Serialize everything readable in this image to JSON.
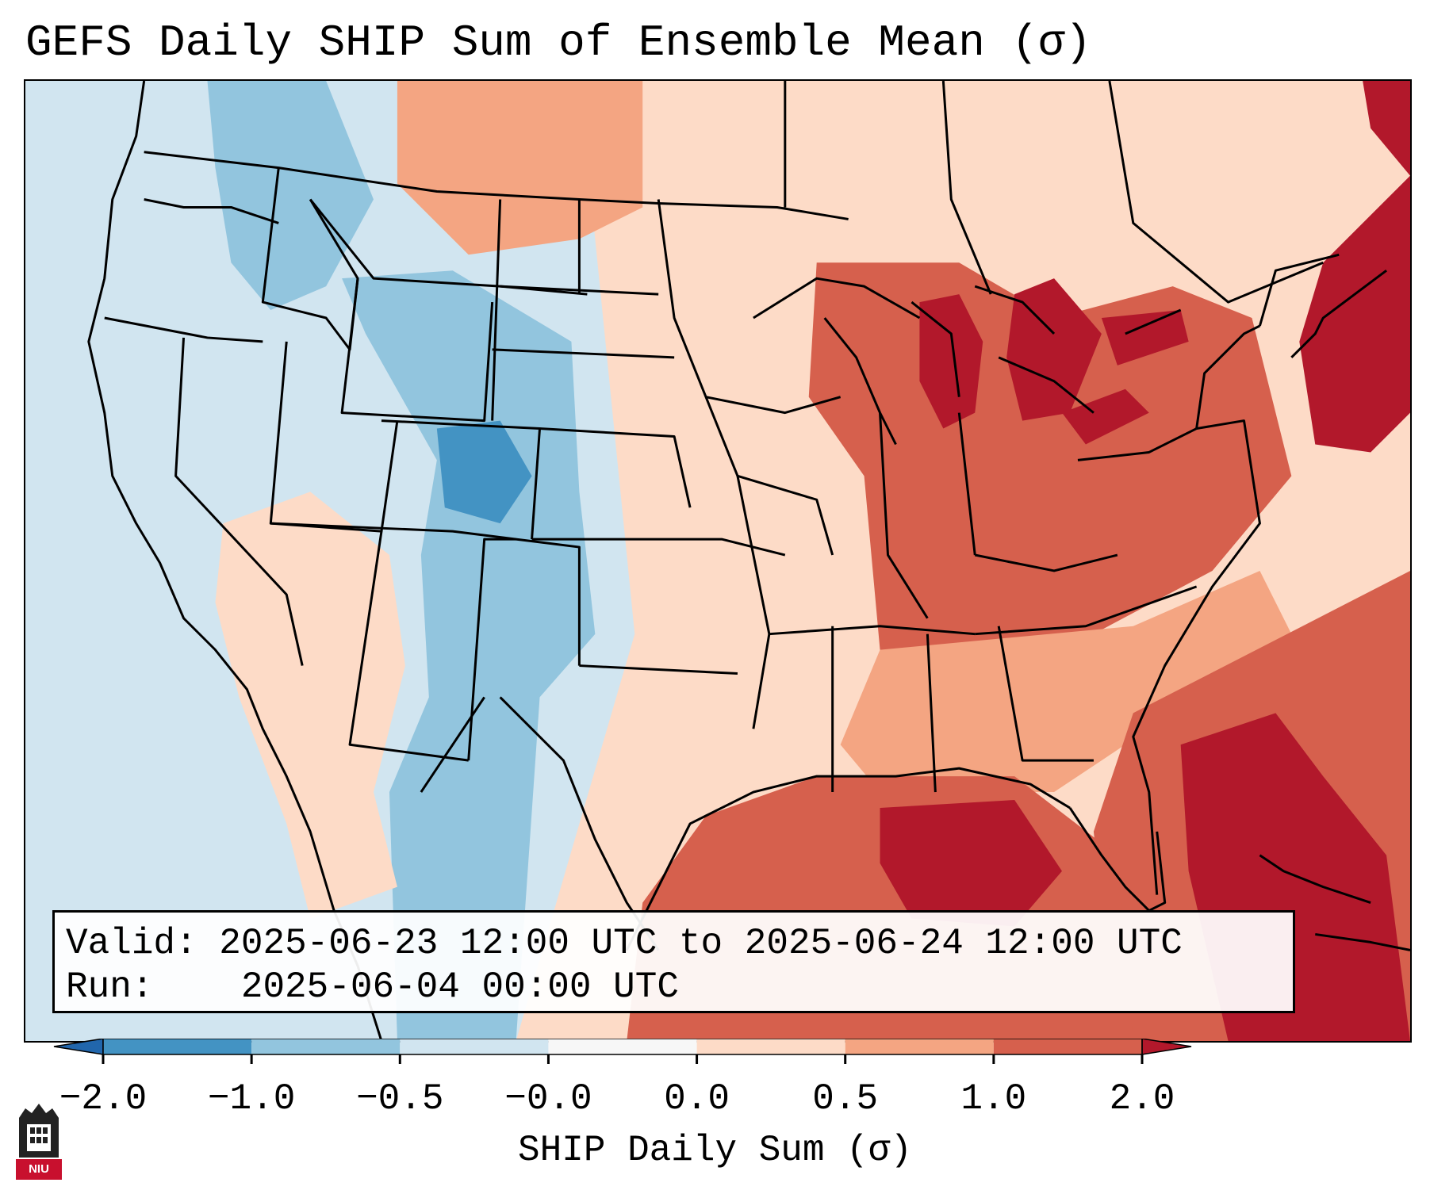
{
  "title": "GEFS Daily SHIP Sum of Ensemble Mean (σ)",
  "info": {
    "valid_label": "Valid:",
    "valid_value": "2025-06-23 12:00 UTC to 2025-06-24 12:00 UTC",
    "run_label": "Run:",
    "run_value": "2025-06-04 00:00 UTC"
  },
  "colorbar": {
    "label": "SHIP Daily Sum (σ)",
    "ticks": [
      "−2.0",
      "−1.0",
      "−0.5",
      "−0.0",
      "0.0",
      "0.5",
      "1.0",
      "2.0"
    ],
    "colors": [
      "#2166ac",
      "#4393c3",
      "#92c5de",
      "#d1e5f0",
      "#f7f7f7",
      "#fddbc7",
      "#f4a582",
      "#d6604d",
      "#b2182b"
    ],
    "extend": "both"
  },
  "logo": {
    "text": "NIU"
  },
  "regions": [
    {
      "name": "pacific-ocean",
      "level": 3
    },
    {
      "name": "western-us",
      "level": 3
    },
    {
      "name": "great-basin-blue",
      "level": 2
    },
    {
      "name": "four-corners-blue",
      "level": 2
    },
    {
      "name": "colorado-core",
      "level": 1
    },
    {
      "name": "southwest-desert",
      "level": 5
    },
    {
      "name": "northern-plains",
      "level": 5
    },
    {
      "name": "canadian-prairies",
      "level": 6
    },
    {
      "name": "central-plains",
      "level": 5
    },
    {
      "name": "great-lakes",
      "level": 7
    },
    {
      "name": "lake-cores",
      "level": 8
    },
    {
      "name": "southeast-us",
      "level": 6
    },
    {
      "name": "gulf-of-mexico",
      "level": 7
    },
    {
      "name": "gulf-core",
      "level": 8
    },
    {
      "name": "atlantic-ocean",
      "level": 7
    },
    {
      "name": "northeast-us",
      "level": 8
    },
    {
      "name": "atlantic-core",
      "level": 8
    }
  ]
}
